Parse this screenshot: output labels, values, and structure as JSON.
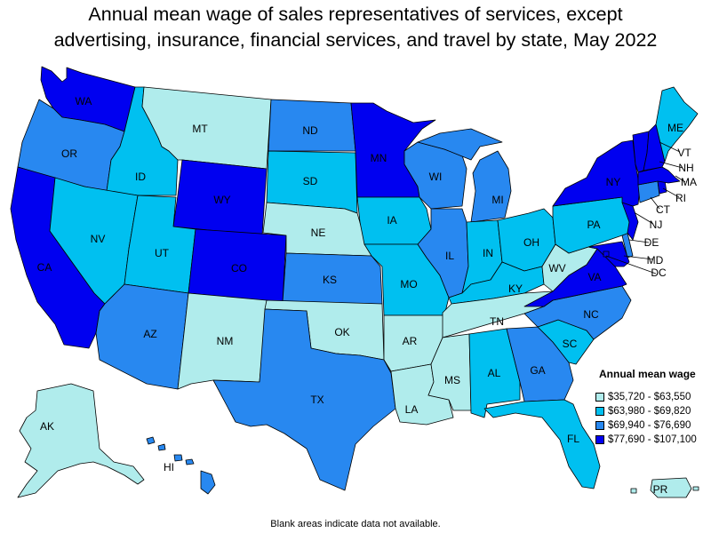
{
  "title": {
    "line1": "Annual mean wage of sales representatives of services, except",
    "line2": "advertising, insurance, financial services, and travel by state, May 2022"
  },
  "colors": {
    "t1": "#b0ecec",
    "t2": "#00c0f0",
    "t3": "#2888f0",
    "t4": "#0000f0",
    "none": "#ffffff"
  },
  "legend": {
    "title": "Annual mean wage",
    "items": [
      {
        "label": "$35,720 - $63,550",
        "tier": "t1"
      },
      {
        "label": "$63,980 - $69,820",
        "tier": "t2"
      },
      {
        "label": "$69,940 - $76,690",
        "tier": "t3"
      },
      {
        "label": "$77,690 - $107,100",
        "tier": "t4"
      }
    ]
  },
  "states": {
    "WA": "t4",
    "OR": "t3",
    "CA": "t4",
    "ID": "t2",
    "NV": "t2",
    "MT": "t1",
    "WY": "t4",
    "UT": "t2",
    "AZ": "t3",
    "CO": "t4",
    "NM": "t1",
    "ND": "t3",
    "SD": "t2",
    "NE": "t1",
    "KS": "t3",
    "OK": "t1",
    "TX": "t3",
    "MN": "t4",
    "IA": "t2",
    "MO": "t2",
    "AR": "t1",
    "LA": "t1",
    "WI": "t3",
    "IL": "t3",
    "MI": "t3",
    "IN": "t2",
    "OH": "t2",
    "KY": "t2",
    "TN": "t1",
    "MS": "t1",
    "AL": "t2",
    "GA": "t3",
    "FL": "t2",
    "SC": "t2",
    "NC": "t3",
    "VA": "t4",
    "WV": "t1",
    "PA": "t2",
    "NY": "t4",
    "VT": "t4",
    "NH": "t4",
    "ME": "t2",
    "MA": "t4",
    "RI": "t4",
    "CT": "t3",
    "NJ": "t4",
    "DE": "t3",
    "MD": "t4",
    "DC": "t4",
    "AK": "t1",
    "HI": "t3",
    "PR": "t1"
  },
  "labels": {
    "WA": "WA",
    "OR": "OR",
    "CA": "CA",
    "ID": "ID",
    "NV": "NV",
    "MT": "MT",
    "WY": "WY",
    "UT": "UT",
    "AZ": "AZ",
    "CO": "CO",
    "NM": "NM",
    "ND": "ND",
    "SD": "SD",
    "NE": "NE",
    "KS": "KS",
    "OK": "OK",
    "TX": "TX",
    "MN": "MN",
    "IA": "IA",
    "MO": "MO",
    "AR": "AR",
    "LA": "LA",
    "WI": "WI",
    "IL": "IL",
    "MI": "MI",
    "IN": "IN",
    "OH": "OH",
    "KY": "KY",
    "TN": "TN",
    "MS": "MS",
    "AL": "AL",
    "GA": "GA",
    "FL": "FL",
    "SC": "SC",
    "NC": "NC",
    "VA": "VA",
    "WV": "WV",
    "PA": "PA",
    "NY": "NY",
    "VT": "VT",
    "NH": "NH",
    "ME": "ME",
    "MA": "MA",
    "RI": "RI",
    "CT": "CT",
    "NJ": "NJ",
    "DE": "DE",
    "MD": "MD",
    "DC": "DC",
    "AK": "AK",
    "HI": "HI",
    "PR": "PR"
  },
  "footnote": "Blank areas indicate data not available."
}
